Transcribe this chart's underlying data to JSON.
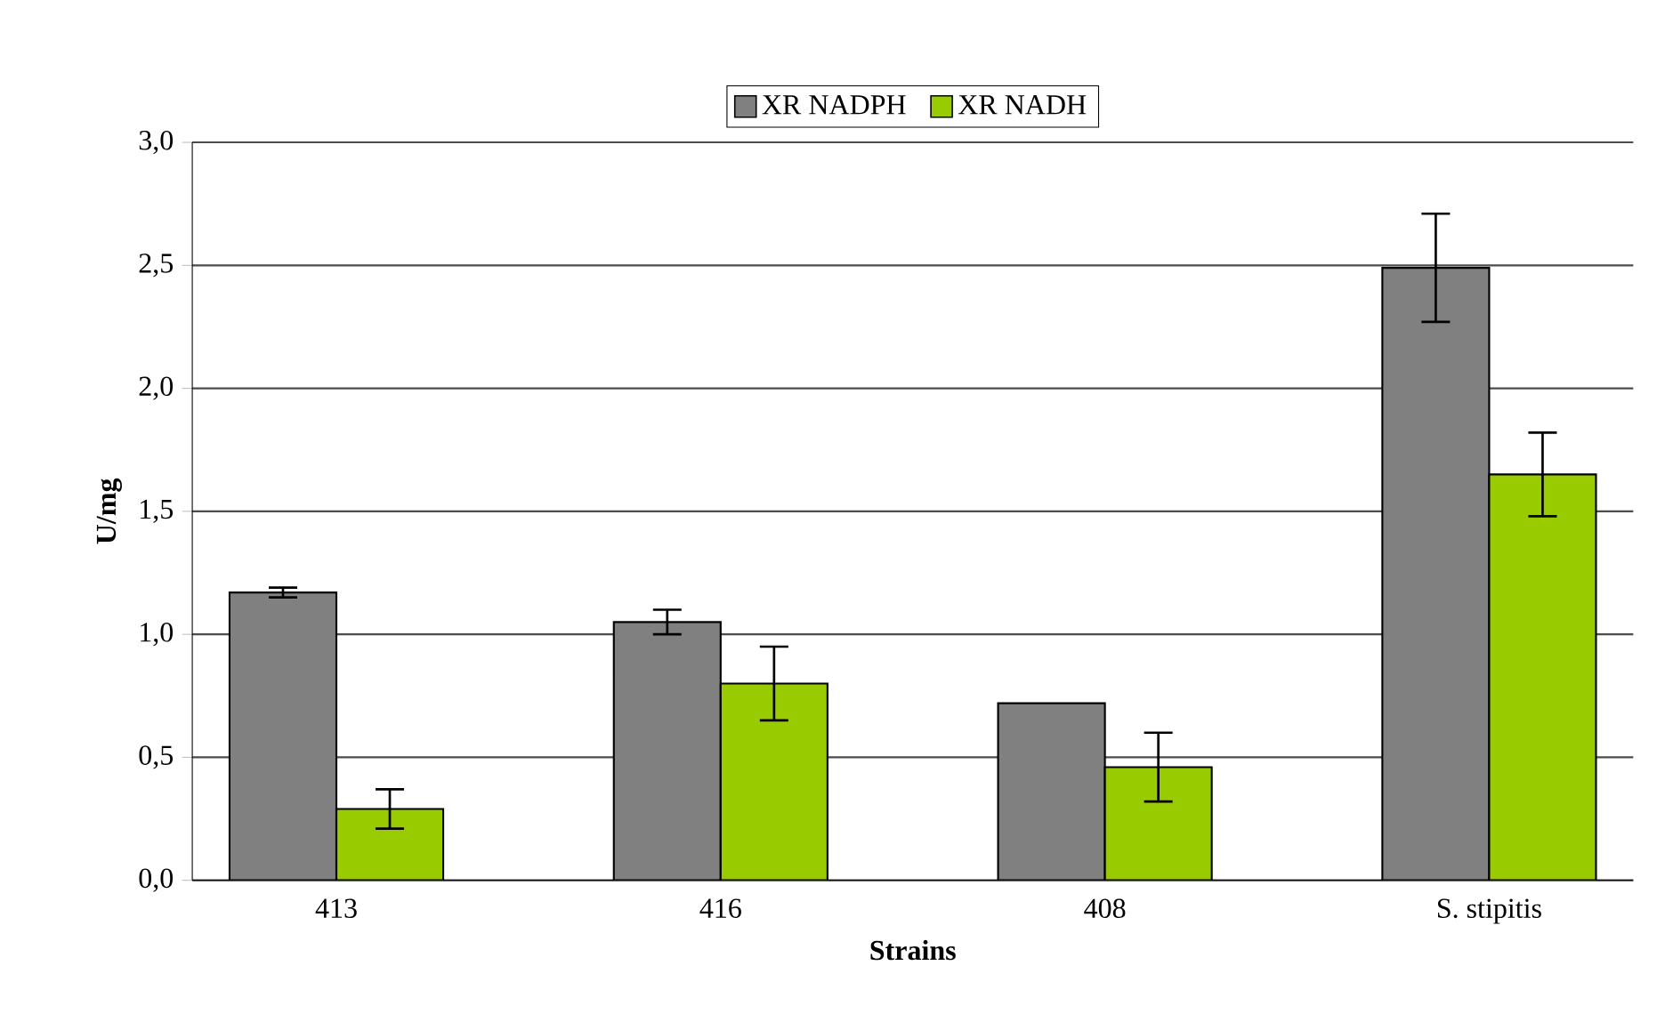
{
  "chart_data": {
    "type": "bar",
    "xlabel": "Strains",
    "ylabel": "U/mg",
    "categories": [
      "413",
      "416",
      "408",
      "S. stipitis"
    ],
    "series": [
      {
        "name": "XR NADPH",
        "color": "#808080",
        "values": [
          1.17,
          1.05,
          0.72,
          2.49
        ],
        "errors": [
          0.02,
          0.05,
          null,
          0.22
        ]
      },
      {
        "name": "XR NADH",
        "color": "#99cc00",
        "values": [
          0.29,
          0.8,
          0.46,
          1.65
        ],
        "errors": [
          0.08,
          0.15,
          0.14,
          0.17
        ]
      }
    ],
    "ylim": [
      0,
      3
    ],
    "yticks": [
      {
        "value": 0,
        "label": "0,0"
      },
      {
        "value": 0.5,
        "label": "0,5"
      },
      {
        "value": 1,
        "label": "1,0"
      },
      {
        "value": 1.5,
        "label": "1,5"
      },
      {
        "value": 2,
        "label": "2,0"
      },
      {
        "value": 2.5,
        "label": "2,5"
      },
      {
        "value": 3,
        "label": "3,0"
      }
    ],
    "grid": "y",
    "legend": "top"
  }
}
